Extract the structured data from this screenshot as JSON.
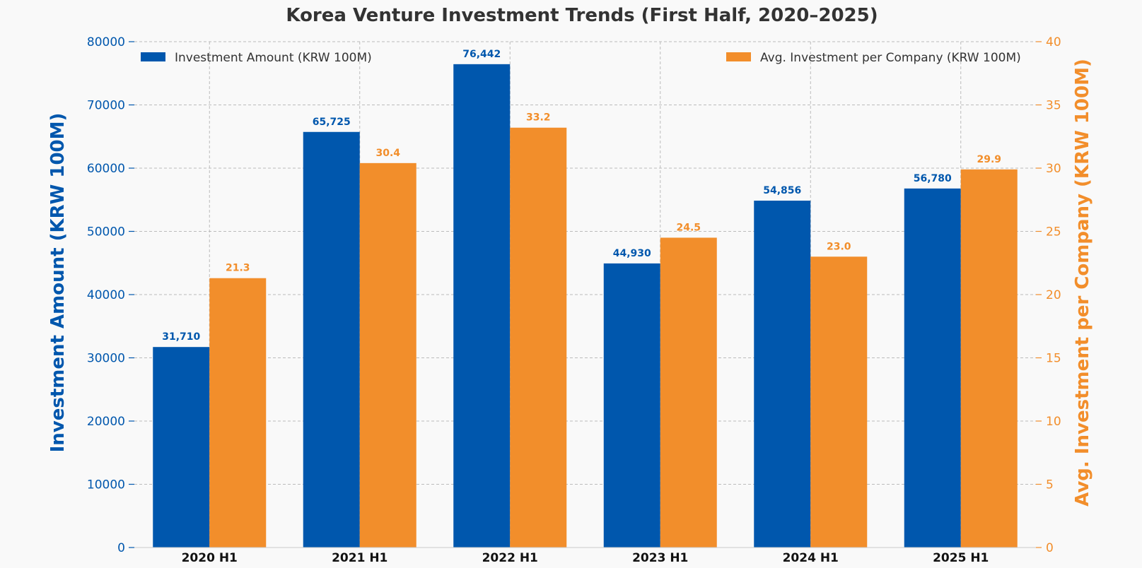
{
  "chart_data": {
    "type": "bar",
    "title": "Korea Venture Investment Trends (First Half, 2020–2025)",
    "categories": [
      "2020 H1",
      "2021 H1",
      "2022 H1",
      "2023 H1",
      "2024 H1",
      "2025 H1"
    ],
    "series": [
      {
        "name": "Investment Amount (KRW 100M)",
        "axis": "left",
        "color": "#0057AD",
        "values": [
          31710,
          65725,
          76442,
          44930,
          54856,
          56780
        ],
        "labels": [
          "31,710",
          "65,725",
          "76,442",
          "44,930",
          "54,856",
          "56,780"
        ]
      },
      {
        "name": "Avg. Investment per Company (KRW 100M)",
        "axis": "right",
        "color": "#F28E2B",
        "values": [
          21.3,
          30.4,
          33.2,
          24.5,
          23.0,
          29.9
        ],
        "labels": [
          "21.3",
          "30.4",
          "33.2",
          "24.5",
          "23.0",
          "29.9"
        ]
      }
    ],
    "ylabel": "Investment Amount (KRW 100M)",
    "ylabel_right": "Avg. Investment per Company (KRW 100M)",
    "ylim": [
      0,
      80000
    ],
    "ylim_right": [
      0,
      40
    ],
    "yticks": [
      0,
      10000,
      20000,
      30000,
      40000,
      50000,
      60000,
      70000,
      80000
    ],
    "yticks_right": [
      0,
      5,
      10,
      15,
      20,
      25,
      30,
      35,
      40
    ],
    "grid": true,
    "legend": [
      "top-left",
      "top-right"
    ]
  }
}
